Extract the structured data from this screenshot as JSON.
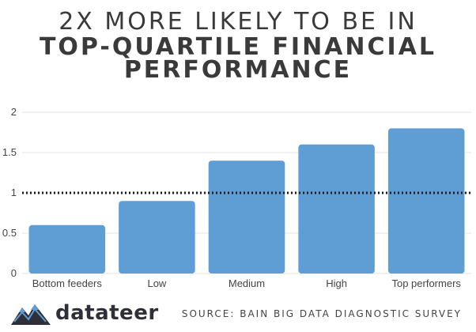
{
  "title": {
    "line1": "2X MORE LIKELY TO BE IN",
    "line2": "TOP-QUARTILE FINANCIAL",
    "line3": "PERFORMANCE"
  },
  "chart_data": {
    "type": "bar",
    "categories": [
      "Bottom feeders",
      "Low",
      "Medium",
      "High",
      "Top performers"
    ],
    "values": [
      0.6,
      0.9,
      1.4,
      1.6,
      1.8
    ],
    "ylim": [
      0,
      2
    ],
    "yticks": [
      "0",
      "0.5",
      "1",
      "1.5",
      "2"
    ],
    "reference_line": 1,
    "grid": true,
    "bar_color": "#5f9ed4"
  },
  "footer": {
    "brand": "datateer",
    "brand_icon": "mountain-logo-icon",
    "source": "SOURCE: BAIN BIG DATA DIAGNOSTIC SURVEY"
  }
}
